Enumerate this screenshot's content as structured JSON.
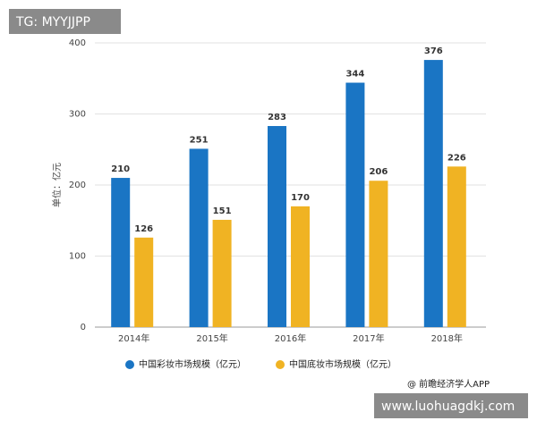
{
  "chart_data": {
    "type": "bar",
    "y_label": "单位：亿元",
    "categories": [
      "2014年",
      "2015年",
      "2016年",
      "2017年",
      "2018年"
    ],
    "series": [
      {
        "name": "中国彩妆市场规模（亿元）",
        "color": "#1a75c4",
        "values": [
          210,
          251,
          283,
          344,
          376
        ]
      },
      {
        "name": "中国底妆市场规模（亿元）",
        "color": "#f0b323",
        "values": [
          126,
          151,
          170,
          206,
          226
        ]
      }
    ],
    "ylim": [
      0,
      400
    ],
    "yticks": [
      0,
      100,
      200,
      300,
      400
    ],
    "grid": true,
    "legend": "bottom",
    "source": "@ 前瞻经济学人APP"
  },
  "overlay_top": "TG: MYYJJPP",
  "overlay_bottom": "www.luohuagdkj.com"
}
